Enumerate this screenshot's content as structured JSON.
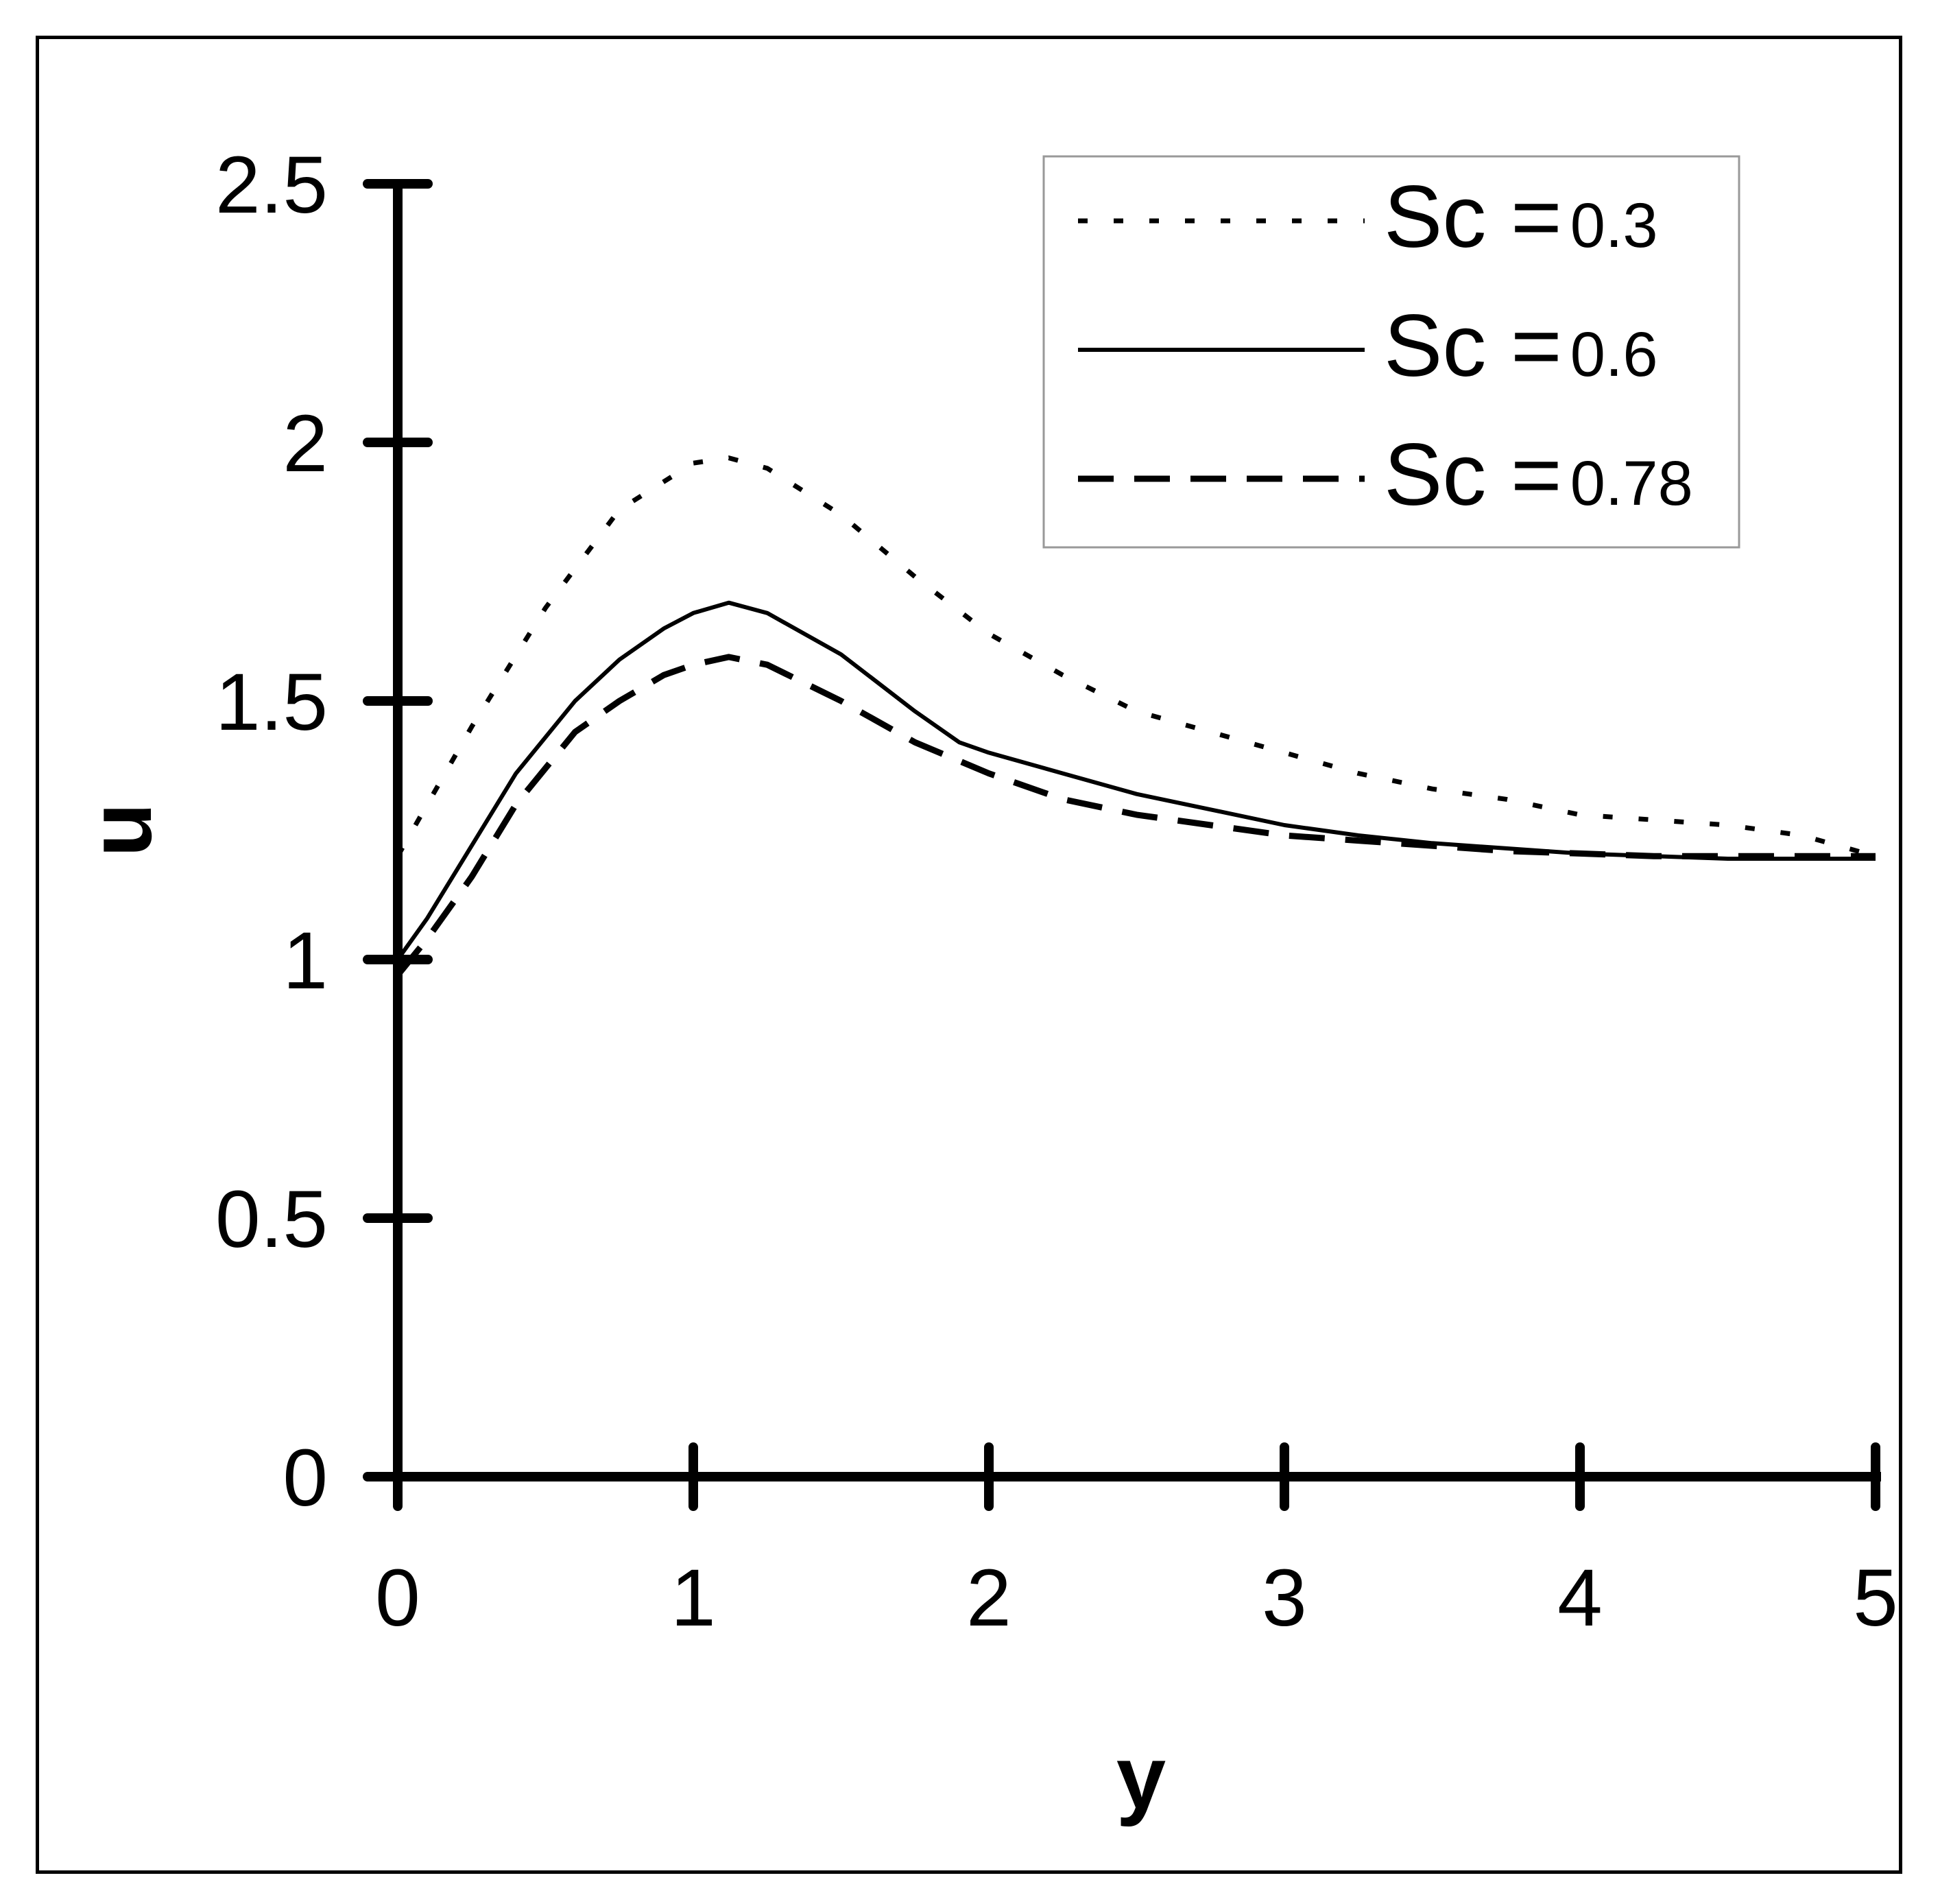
{
  "chart_data": {
    "type": "line",
    "xlabel": "y",
    "ylabel": "u",
    "xlim": [
      0,
      5
    ],
    "ylim": [
      0,
      2.5
    ],
    "xticks": [
      "0",
      "1",
      "2",
      "3",
      "4",
      "5"
    ],
    "yticks": [
      "0",
      "0.5",
      "1",
      "1.5",
      "2",
      "2.5"
    ],
    "grid": false,
    "legend_position": "top-right",
    "series": [
      {
        "name": "Sc = 0.3",
        "legend_prefix": "Sc =",
        "legend_value": "0.3",
        "style": "dotted",
        "x": [
          0,
          0.25,
          0.5,
          0.75,
          1.0,
          1.12,
          1.25,
          1.5,
          1.75,
          2.0,
          2.25,
          2.5,
          2.75,
          3.0,
          3.25,
          3.5,
          3.75,
          4.0,
          4.25,
          4.5,
          4.75,
          5.0
        ],
        "y": [
          1.2,
          1.45,
          1.68,
          1.87,
          1.96,
          1.97,
          1.95,
          1.86,
          1.74,
          1.63,
          1.55,
          1.48,
          1.44,
          1.4,
          1.36,
          1.33,
          1.31,
          1.28,
          1.27,
          1.26,
          1.24,
          1.2
        ]
      },
      {
        "name": "Sc = 0.6",
        "legend_prefix": "Sc =",
        "legend_value": "0.6",
        "style": "solid",
        "x": [
          0,
          0.1,
          0.25,
          0.4,
          0.6,
          0.75,
          0.9,
          1.0,
          1.12,
          1.25,
          1.5,
          1.75,
          1.9,
          2.0,
          2.25,
          2.5,
          2.75,
          3.0,
          3.25,
          3.5,
          3.75,
          4.0,
          4.25,
          4.5,
          4.75,
          5.0
        ],
        "y": [
          1.0,
          1.08,
          1.22,
          1.36,
          1.5,
          1.58,
          1.64,
          1.67,
          1.69,
          1.67,
          1.59,
          1.48,
          1.42,
          1.4,
          1.36,
          1.32,
          1.29,
          1.26,
          1.24,
          1.225,
          1.215,
          1.205,
          1.2,
          1.195,
          1.195,
          1.195
        ]
      },
      {
        "name": "Sc = 0.78",
        "legend_prefix": "Sc =",
        "legend_value": "0.78",
        "style": "dashed",
        "x": [
          0,
          0.1,
          0.25,
          0.4,
          0.6,
          0.75,
          0.9,
          1.0,
          1.12,
          1.25,
          1.5,
          1.75,
          2.0,
          2.25,
          2.5,
          2.75,
          3.0,
          3.25,
          3.5,
          3.75,
          4.0,
          4.25,
          4.5,
          4.75,
          5.0
        ],
        "y": [
          0.97,
          1.04,
          1.16,
          1.3,
          1.44,
          1.5,
          1.55,
          1.57,
          1.585,
          1.57,
          1.5,
          1.42,
          1.36,
          1.31,
          1.28,
          1.26,
          1.24,
          1.23,
          1.22,
          1.21,
          1.205,
          1.2,
          1.2,
          1.2,
          1.2
        ]
      }
    ]
  }
}
